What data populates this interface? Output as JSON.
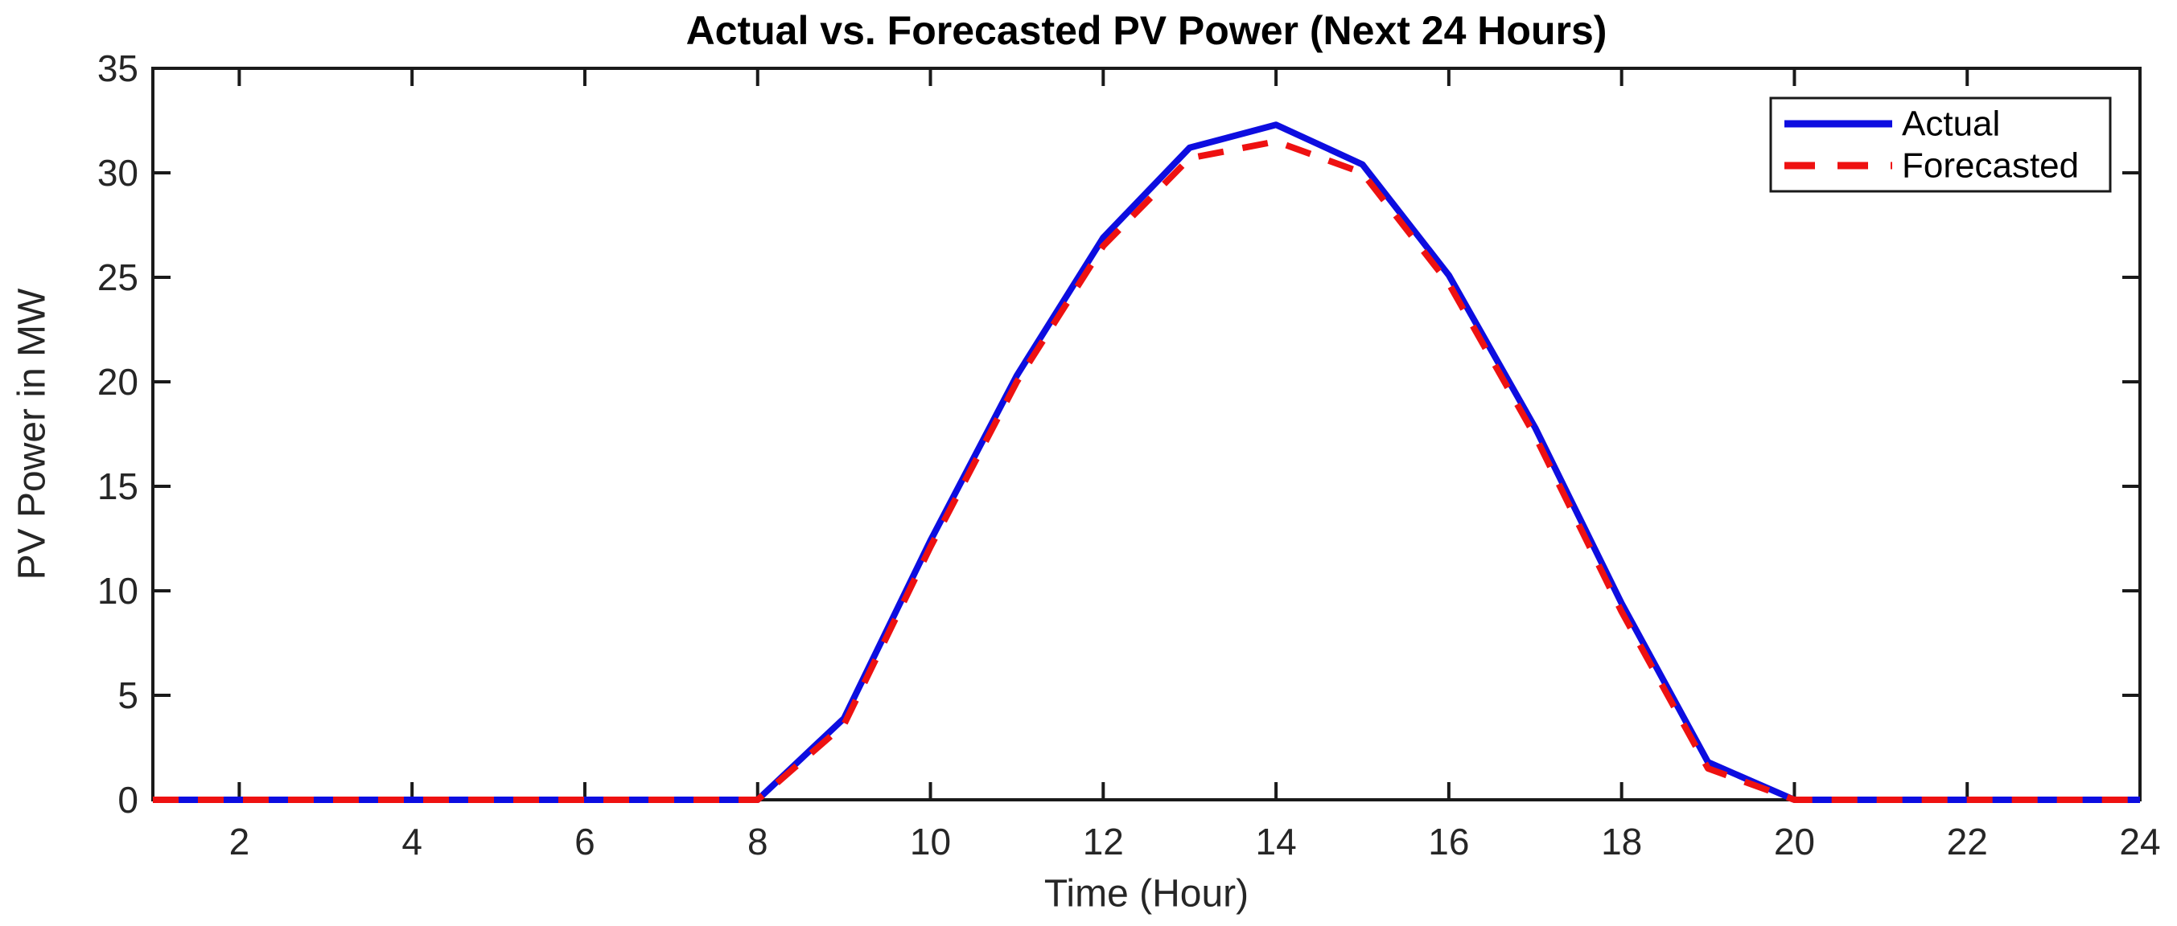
{
  "chart_data": {
    "type": "line",
    "title": "Actual vs. Forecasted PV Power (Next 24 Hours)",
    "xlabel": "Time (Hour)",
    "ylabel": "PV Power in MW",
    "xlim": [
      1,
      24
    ],
    "ylim": [
      0,
      35
    ],
    "xticks": [
      2,
      4,
      6,
      8,
      10,
      12,
      14,
      16,
      18,
      20,
      22,
      24
    ],
    "yticks": [
      0,
      5,
      10,
      15,
      20,
      25,
      30,
      35
    ],
    "grid": false,
    "legend_position": "top-right",
    "x": [
      1,
      2,
      3,
      4,
      5,
      6,
      7,
      8,
      9,
      10,
      11,
      12,
      13,
      14,
      15,
      16,
      17,
      18,
      19,
      20,
      21,
      22,
      23,
      24
    ],
    "series": [
      {
        "name": "Actual",
        "color": "#0d0de0",
        "style": "solid",
        "values": [
          0,
          0,
          0,
          0,
          0,
          0,
          0,
          0,
          3.9,
          12.4,
          20.3,
          26.9,
          31.2,
          32.3,
          30.4,
          25.1,
          17.8,
          9.4,
          1.8,
          0,
          0,
          0,
          0,
          0
        ]
      },
      {
        "name": "Forecasted",
        "color": "#ee1111",
        "style": "dashed",
        "values": [
          0,
          0,
          0,
          0,
          0,
          0,
          0,
          0,
          3.6,
          12.1,
          20.0,
          26.5,
          30.7,
          31.5,
          30.0,
          24.7,
          17.4,
          9.0,
          1.5,
          0,
          0,
          0,
          0,
          0
        ]
      }
    ]
  },
  "colors": {
    "axis": "#1a1a1a",
    "tick_text": "#262626",
    "background": "#ffffff",
    "legend_border": "#1a1a1a",
    "actual_line": "#0d0de0",
    "forecasted_line": "#ee1111"
  }
}
